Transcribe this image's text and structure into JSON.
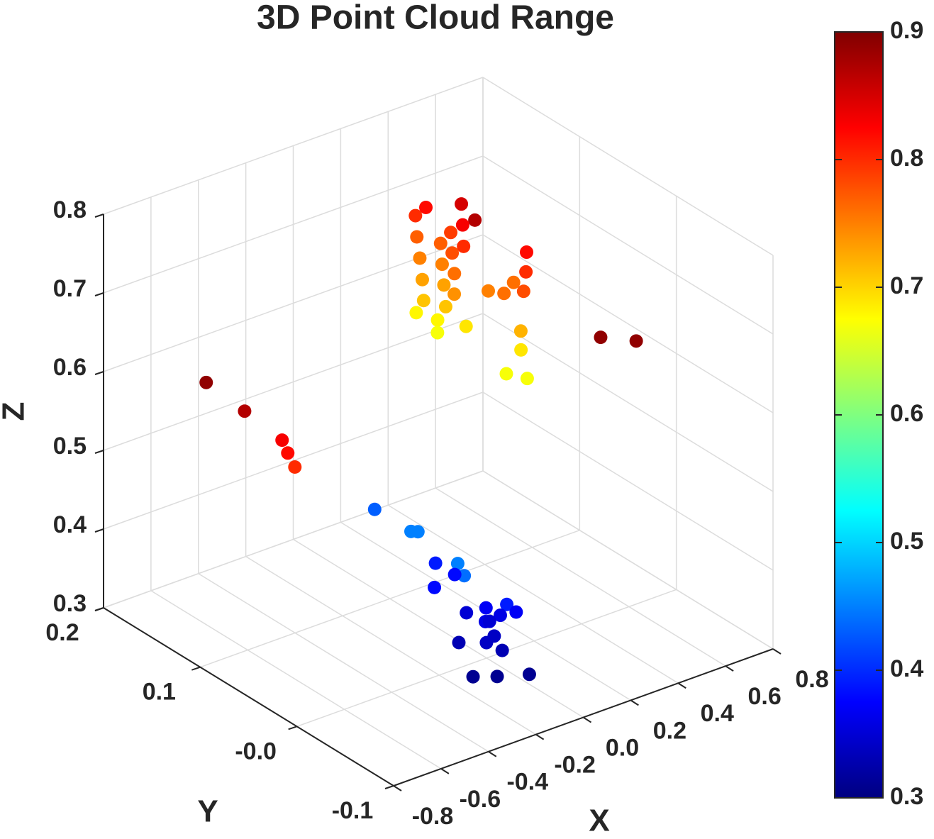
{
  "chart_data": {
    "type": "scatter3d",
    "title": "3D Point Cloud Range",
    "xlabel": "X",
    "ylabel": "Y",
    "zlabel": "Z",
    "xlim": [
      -0.8,
      0.8
    ],
    "ylim": [
      -0.1,
      0.2
    ],
    "zlim": [
      0.3,
      0.8
    ],
    "xticks": [
      -0.8,
      -0.6,
      -0.4,
      -0.2,
      {
        "value": 0,
        "label": "0.0"
      },
      0.2,
      0.4,
      0.6,
      0.8
    ],
    "yticks": [
      -0.1,
      {
        "value": 0,
        "label": "-0.0"
      },
      0.1,
      0.2
    ],
    "zticks": [
      0.3,
      0.4,
      0.5,
      0.6,
      0.7,
      0.8
    ],
    "grid": true,
    "colormap": "jet",
    "clim": [
      0.3,
      0.9
    ],
    "cticks": [
      0.3,
      0.4,
      0.5,
      0.6,
      0.7,
      0.8,
      0.9
    ],
    "x": [
      0.022,
      0.017,
      0.024,
      -0.078,
      0.005,
      0.077,
      0.036,
      0.071,
      0.017,
      0.026,
      0.02,
      0.053,
      0.011,
      0.002,
      0.036,
      -0.01,
      -0.017,
      0.015,
      0.013,
      0.038,
      0.017,
      0.052,
      0.091,
      0.072,
      0.13,
      0.05,
      0.06,
      0.057,
      0.075,
      0.096,
      0.022,
      0.057,
      0.277,
      0.427,
      -0.571,
      -0.409,
      -0.251,
      -0.227,
      -0.197,
      -0.097,
      -0.164,
      -0.147,
      -0.032,
      -0.179,
      -0.18,
      0.004,
      -0.106,
      -0.028,
      -0.023,
      -0.021,
      0.039,
      0.017,
      -0.05,
      -0.004,
      -0.021,
      -0.07,
      -0.109,
      -0.028,
      -0.151,
      -0.086,
      0.009
    ],
    "y": [
      0.079,
      0.067,
      0.032,
      -0.007,
      0.026,
      0.056,
      0.081,
      0.065,
      0.028,
      0.042,
      0.074,
      0.059,
      0.036,
      0.067,
      0.053,
      0.031,
      0.061,
      0.046,
      0.076,
      0.06,
      0.055,
      0.034,
      -0.019,
      -0.023,
      0.004,
      -0.026,
      0.013,
      -0.004,
      -0.017,
      -0.012,
      -0.015,
      -0.028,
      -0.05,
      -0.05,
      0.15,
      0.15,
      0.15,
      0.15,
      0.15,
      0.092,
      0.038,
      0.035,
      0.045,
      -0.014,
      -0.021,
      0.034,
      0.028,
      0.014,
      -0.005,
      -0.026,
      -0.021,
      -0.01,
      -0.011,
      -0.004,
      -0.013,
      -0.017,
      0.002,
      -0.023,
      -0.023,
      -0.032,
      -0.042
    ],
    "z": [
      0.8,
      0.82,
      0.85,
      0.87,
      0.83,
      0.79,
      0.77,
      0.77,
      0.8,
      0.78,
      0.75,
      0.75,
      0.76,
      0.73,
      0.73,
      0.74,
      0.71,
      0.71,
      0.68,
      0.68,
      0.67,
      0.69,
      0.82,
      0.8,
      0.76,
      0.78,
      0.75,
      0.76,
      0.72,
      0.69,
      0.67,
      0.67,
      0.715,
      0.694,
      0.599,
      0.545,
      0.491,
      0.472,
      0.451,
      0.43,
      0.45,
      0.45,
      0.39,
      0.45,
      0.44,
      0.38,
      0.38,
      0.35,
      0.37,
      0.39,
      0.37,
      0.36,
      0.36,
      0.35,
      0.34,
      0.34,
      0.33,
      0.33,
      0.31,
      0.31,
      0.31
    ],
    "c": [
      0.8,
      0.82,
      0.85,
      0.87,
      0.83,
      0.79,
      0.77,
      0.77,
      0.8,
      0.78,
      0.75,
      0.75,
      0.76,
      0.73,
      0.73,
      0.74,
      0.71,
      0.71,
      0.68,
      0.68,
      0.67,
      0.69,
      0.82,
      0.8,
      0.76,
      0.78,
      0.75,
      0.76,
      0.72,
      0.69,
      0.67,
      0.67,
      0.89,
      0.89,
      0.89,
      0.87,
      0.83,
      0.82,
      0.8,
      0.43,
      0.45,
      0.45,
      0.39,
      0.45,
      0.44,
      0.38,
      0.38,
      0.35,
      0.37,
      0.39,
      0.37,
      0.36,
      0.36,
      0.35,
      0.34,
      0.34,
      0.33,
      0.33,
      0.31,
      0.31,
      0.31
    ]
  }
}
